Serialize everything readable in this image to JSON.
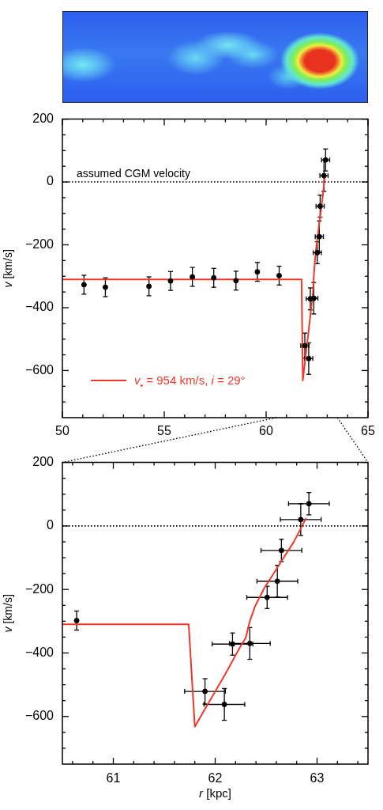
{
  "chart_data": [
    {
      "type": "scatter",
      "ylabel": "v [km/s]",
      "xlim": [
        50,
        65
      ],
      "xticks": [
        50,
        {
          "value": 51,
          "label": null
        },
        {
          "value": 52,
          "label": null
        },
        {
          "value": 53,
          "label": null
        },
        {
          "value": 54,
          "label": null
        },
        55,
        {
          "value": 56,
          "label": null
        },
        {
          "value": 57,
          "label": null
        },
        {
          "value": 58,
          "label": null
        },
        {
          "value": 59,
          "label": null
        },
        60,
        {
          "value": 61,
          "label": null
        },
        {
          "value": 62,
          "label": null
        },
        {
          "value": 63,
          "label": null
        },
        {
          "value": 64,
          "label": null
        },
        65
      ],
      "ylim": [
        -750,
        200
      ],
      "yticks": [
        {
          "value": -700,
          "label": null
        },
        {
          "value": -650,
          "label": null
        },
        -600,
        {
          "value": -550,
          "label": null
        },
        {
          "value": -500,
          "label": null
        },
        {
          "value": -450,
          "label": null
        },
        -400,
        {
          "value": -350,
          "label": null
        },
        {
          "value": -300,
          "label": null
        },
        {
          "value": -250,
          "label": null
        },
        -200,
        {
          "value": -150,
          "label": null
        },
        {
          "value": -100,
          "label": null
        },
        {
          "value": -50,
          "label": null
        },
        0,
        {
          "value": 50,
          "label": null
        },
        {
          "value": 100,
          "label": null
        },
        {
          "value": 150,
          "label": null
        },
        200
      ],
      "legend": "bottom left",
      "ref_lines": [
        {
          "axis": "y",
          "value": 0,
          "label": "assumed CGM velocity",
          "line_style": "dotted",
          "color": "#000000"
        }
      ],
      "series": [
        {
          "type": "scatter",
          "color": "#000000",
          "marker": "circle",
          "x": [
            51.06,
            52.11,
            54.25,
            55.31,
            56.38,
            57.43,
            58.52,
            59.57,
            60.64,
            61.9,
            62.09,
            62.17,
            62.34,
            62.51,
            62.61,
            62.65,
            62.84,
            62.92
          ],
          "values": [
            -327,
            -335,
            -332,
            -315,
            -302,
            -305,
            -314,
            -286,
            -298,
            -521,
            -562,
            -372,
            -370,
            -225,
            -174,
            -77,
            20,
            70
          ],
          "errors": [
            30,
            30,
            30,
            30,
            30,
            30,
            30,
            30,
            30,
            40,
            50,
            35,
            50,
            35,
            50,
            35,
            50,
            35
          ],
          "xerrors": [
            null,
            null,
            null,
            null,
            null,
            null,
            null,
            null,
            null,
            0.2,
            0.2,
            0.2,
            0.2,
            0.2,
            0.2,
            0.2,
            0.2,
            0.2
          ]
        },
        {
          "type": "line",
          "name": "v$_{•}$ = 954 km/s, i = 29°",
          "color": "#f0382a",
          "x": [
            50,
            61.74,
            61.8,
            62.1,
            62.24,
            62.3,
            62.34,
            62.39,
            62.48,
            62.64,
            62.77,
            62.89
          ],
          "values": [
            -310,
            -310,
            -632,
            -466,
            -384,
            -352,
            -300,
            -254,
            -197,
            -116,
            -51,
            23
          ]
        }
      ]
    },
    {
      "type": "scatter",
      "xlabel": "r [kpc]",
      "ylabel": "v [km/s]",
      "xlim": [
        60.5,
        63.5
      ],
      "xticks": [
        {
          "value": 60.6,
          "label": null
        },
        {
          "value": 60.8,
          "label": null
        },
        61,
        {
          "value": 61.2,
          "label": null
        },
        {
          "value": 61.4,
          "label": null
        },
        {
          "value": 61.6,
          "label": null
        },
        {
          "value": 61.8,
          "label": null
        },
        62,
        {
          "value": 62.2,
          "label": null
        },
        {
          "value": 62.4,
          "label": null
        },
        {
          "value": 62.6,
          "label": null
        },
        {
          "value": 62.8,
          "label": null
        },
        63,
        {
          "value": 63.2,
          "label": null
        },
        {
          "value": 63.4,
          "label": null
        }
      ],
      "ylim": [
        -750,
        200
      ],
      "yticks": [
        {
          "value": -700,
          "label": null
        },
        {
          "value": -650,
          "label": null
        },
        -600,
        {
          "value": -550,
          "label": null
        },
        {
          "value": -500,
          "label": null
        },
        {
          "value": -450,
          "label": null
        },
        -400,
        {
          "value": -350,
          "label": null
        },
        {
          "value": -300,
          "label": null
        },
        {
          "value": -250,
          "label": null
        },
        -200,
        {
          "value": -150,
          "label": null
        },
        {
          "value": -100,
          "label": null
        },
        {
          "value": -50,
          "label": null
        },
        0,
        {
          "value": 50,
          "label": null
        },
        {
          "value": 100,
          "label": null
        },
        {
          "value": 150,
          "label": null
        },
        200
      ],
      "ref_lines": [
        {
          "axis": "y",
          "value": 0,
          "line_style": "dotted",
          "color": "#000000"
        }
      ],
      "series": [
        {
          "type": "scatter",
          "color": "#000000",
          "marker": "circle",
          "x": [
            60.64,
            61.9,
            62.09,
            62.17,
            62.34,
            62.51,
            62.61,
            62.65,
            62.84,
            62.92
          ],
          "values": [
            -298,
            -521,
            -562,
            -372,
            -370,
            -225,
            -174,
            -77,
            20,
            70
          ],
          "errors": [
            30,
            40,
            50,
            35,
            50,
            35,
            50,
            35,
            50,
            35
          ],
          "xerrors": [
            null,
            0.2,
            0.2,
            0.2,
            0.2,
            0.2,
            0.2,
            0.2,
            0.2,
            0.2
          ]
        },
        {
          "type": "line",
          "color": "#f0382a",
          "x": [
            60.5,
            61.74,
            61.8,
            62.1,
            62.24,
            62.3,
            62.34,
            62.39,
            62.48,
            62.64,
            62.77,
            62.89
          ],
          "values": [
            -310,
            -310,
            -632,
            -466,
            -384,
            -352,
            -300,
            -254,
            -197,
            -116,
            -51,
            23
          ]
        }
      ]
    }
  ]
}
